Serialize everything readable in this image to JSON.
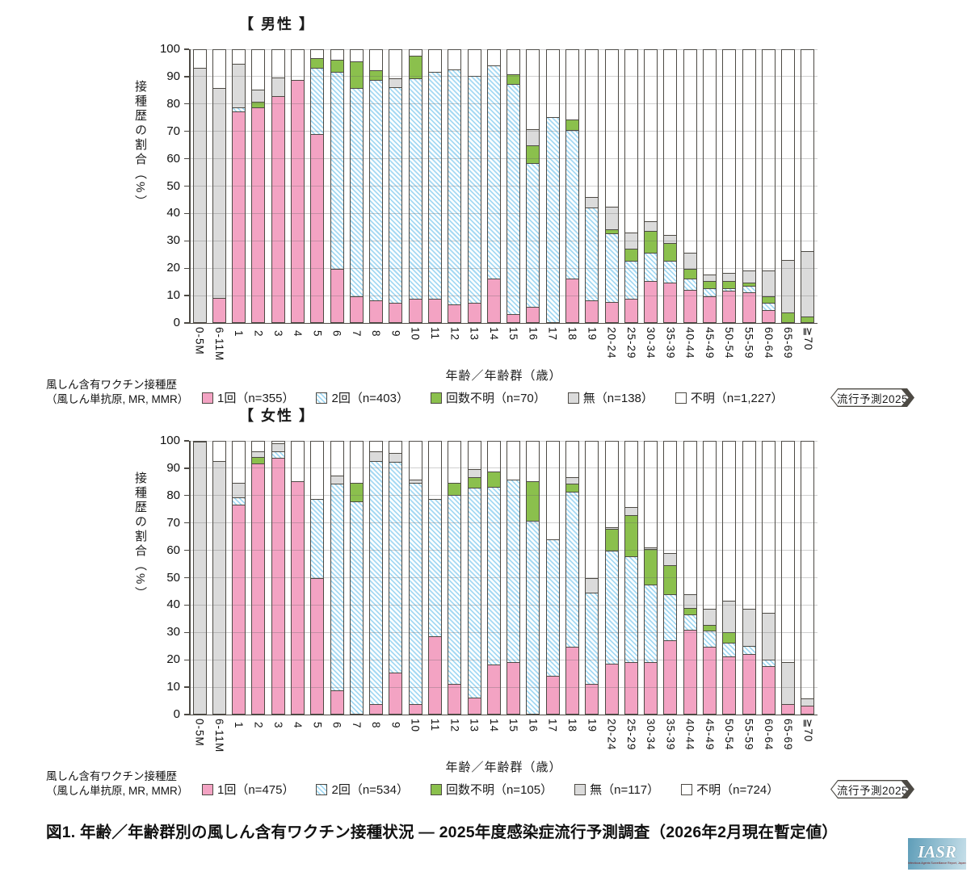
{
  "figure": {
    "caption": "図1. 年齢／年齢群別の風しん含有ワクチン接種状況 ― 2025年度感染症流行予測調査（2026年2月現在暫定値）",
    "logo_text": "IASR",
    "logo_subtext": "Infectious Agents Surveillance Report, Japan"
  },
  "axes": {
    "y_label": "接種歴の割合（%）",
    "x_label": "年齢／年齢群（歳）",
    "y_ticks": [
      100,
      90,
      80,
      70,
      60,
      50,
      40,
      30,
      20,
      10,
      0
    ],
    "ylim": [
      0,
      100
    ]
  },
  "legend": {
    "intro_line1": "風しん含有ワクチン接種歴",
    "intro_line2": "（風しん単抗原, MR, MMR）",
    "badge": "流行予測2025"
  },
  "colors": {
    "dose1": "#F3A3C3",
    "dose2_stripe": "#A5D9F3",
    "dose_unknown": "#8BC04D",
    "none": "#DBDBDB",
    "unknown": "#FFFFFF",
    "outline": "#4D4A44"
  },
  "chart_data": [
    {
      "type": "bar",
      "stacked": true,
      "title": "【 男性 】",
      "grid": true,
      "ylim": [
        0,
        100
      ],
      "categories": [
        "0-5M",
        "6-11M",
        "1",
        "2",
        "3",
        "4",
        "5",
        "6",
        "7",
        "8",
        "9",
        "10",
        "11",
        "12",
        "13",
        "14",
        "15",
        "16",
        "17",
        "18",
        "19",
        "20-24",
        "25-29",
        "30-34",
        "35-39",
        "40-44",
        "45-49",
        "50-54",
        "55-59",
        "60-64",
        "65-69",
        "≧70"
      ],
      "series": [
        {
          "key": "dose1",
          "name": "1回",
          "n": "n=355",
          "color": "dose1",
          "values": [
            0,
            9,
            77.5,
            79,
            83,
            89,
            69,
            19.5,
            9.5,
            8,
            7,
            8.5,
            8.5,
            6.5,
            7,
            16,
            3,
            5.5,
            0,
            16,
            8,
            7.5,
            8.5,
            15,
            14.5,
            12,
            9.5,
            11.5,
            11,
            4.5,
            0,
            0
          ]
        },
        {
          "key": "dose2",
          "name": "2回",
          "n": "n=403",
          "color": "dose2",
          "values": [
            0,
            0,
            1.5,
            0,
            0,
            0,
            24.5,
            72.5,
            76.5,
            81,
            79.5,
            81,
            83.5,
            86.5,
            83.5,
            78.5,
            84.5,
            53,
            75.5,
            54.5,
            34,
            25,
            14,
            10.5,
            8,
            4,
            3,
            1,
            2.5,
            2.5,
            0,
            0
          ]
        },
        {
          "key": "dose_unknown",
          "name": "回数不明",
          "n": "n=70",
          "color": "dose_unknown",
          "values": [
            0,
            0,
            0,
            2,
            0,
            0,
            3.5,
            4.5,
            10,
            3.5,
            0,
            8.5,
            0,
            0,
            0,
            0,
            3.5,
            6.5,
            0,
            4,
            0,
            1.5,
            4.5,
            8,
            6.5,
            3.5,
            2.5,
            2.5,
            1,
            2.5,
            3.5,
            2
          ]
        },
        {
          "key": "none",
          "name": "無",
          "n": "n=138",
          "color": "none",
          "values": [
            93.5,
            77,
            16,
            4.5,
            7,
            0,
            0,
            0,
            0,
            0,
            3,
            0,
            0,
            0,
            0,
            0,
            0,
            6,
            0,
            0,
            4,
            8.5,
            6,
            3.5,
            3,
            6,
            2.5,
            3,
            4.5,
            9.5,
            19.5,
            24
          ]
        },
        {
          "key": "unknown",
          "name": "不明",
          "n": "n=1,227",
          "color": "unknown",
          "values": [
            6.5,
            14,
            5,
            14.5,
            10,
            11,
            3,
            3.5,
            4,
            7.5,
            10.5,
            2,
            8,
            7,
            9.5,
            5.5,
            9,
            29,
            24.5,
            25.5,
            54,
            57.5,
            67,
            63,
            68,
            74.5,
            82.5,
            82,
            81,
            81,
            77,
            74
          ]
        }
      ]
    },
    {
      "type": "bar",
      "stacked": true,
      "title": "【 女性 】",
      "grid": true,
      "ylim": [
        0,
        100
      ],
      "categories": [
        "0-5M",
        "6-11M",
        "1",
        "2",
        "3",
        "4",
        "5",
        "6",
        "7",
        "8",
        "9",
        "10",
        "11",
        "12",
        "13",
        "14",
        "15",
        "16",
        "17",
        "18",
        "19",
        "20-24",
        "25-29",
        "30-34",
        "35-39",
        "40-44",
        "45-49",
        "50-54",
        "55-59",
        "60-64",
        "65-69",
        "≧70"
      ],
      "series": [
        {
          "key": "dose1",
          "name": "1回",
          "n": "n=475",
          "color": "dose1",
          "values": [
            0,
            0,
            77,
            92,
            94,
            85.5,
            50,
            8.5,
            0,
            3.5,
            15,
            3.5,
            28.5,
            11,
            6,
            18,
            19,
            0,
            14,
            24.5,
            11,
            18.5,
            19,
            19,
            27,
            31,
            24.5,
            21,
            22,
            17.5,
            3.5,
            3
          ]
        },
        {
          "key": "dose2",
          "name": "2回",
          "n": "n=534",
          "color": "dose2",
          "values": [
            0,
            0,
            2.5,
            0,
            2.5,
            0,
            29,
            76,
            78,
            89.5,
            77.5,
            81.5,
            50.5,
            69.5,
            77,
            65.5,
            67,
            71,
            50,
            57,
            33.5,
            41.5,
            39,
            28.5,
            17,
            5.5,
            6,
            5,
            3,
            2.5,
            0,
            0
          ]
        },
        {
          "key": "dose_unknown",
          "name": "回数不明",
          "n": "n=105",
          "color": "dose_unknown",
          "values": [
            0,
            0,
            0,
            2.5,
            0,
            0,
            0,
            0,
            7,
            0,
            0,
            0,
            0,
            4.5,
            4,
            5.5,
            0,
            14.5,
            0,
            3,
            0,
            8,
            15,
            13,
            10.5,
            2.5,
            2,
            4,
            0,
            0,
            0,
            0
          ]
        },
        {
          "key": "none",
          "name": "無",
          "n": "n=117",
          "color": "none",
          "values": [
            100,
            93,
            5.5,
            2,
            3,
            0,
            0,
            3,
            0,
            3.5,
            3.5,
            1,
            0,
            0,
            3,
            0,
            0,
            0,
            0,
            2.5,
            5.5,
            0.5,
            3,
            0.5,
            4.5,
            5,
            6,
            11.5,
            13.5,
            17,
            15.5,
            2.5
          ]
        },
        {
          "key": "unknown",
          "name": "不明",
          "n": "n=724",
          "color": "unknown",
          "values": [
            0,
            7,
            15,
            3.5,
            0.5,
            14.5,
            21,
            12.5,
            15,
            3.5,
            4,
            14,
            21,
            15,
            10,
            11,
            14,
            14.5,
            36,
            13,
            50,
            31.5,
            24,
            39,
            41,
            56,
            61.5,
            58.5,
            61.5,
            63,
            81,
            94.5
          ]
        }
      ]
    }
  ]
}
